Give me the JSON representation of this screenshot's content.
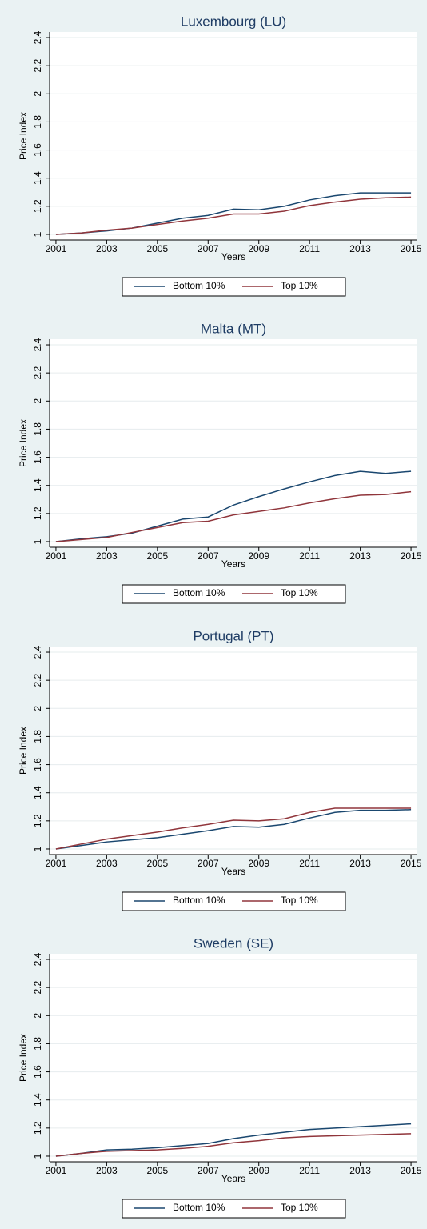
{
  "chart_data": [
    {
      "type": "line",
      "title": "Luxembourg (LU)",
      "xlabel": "Years",
      "ylabel": "Price Index",
      "grid": true,
      "x": [
        2001,
        2002,
        2003,
        2004,
        2005,
        2006,
        2007,
        2008,
        2009,
        2010,
        2011,
        2012,
        2013,
        2014,
        2015
      ],
      "series": [
        {
          "name": "Bottom 10%",
          "color": "#1a476f",
          "values": [
            1.0,
            1.01,
            1.025,
            1.045,
            1.08,
            1.115,
            1.135,
            1.18,
            1.175,
            1.2,
            1.245,
            1.275,
            1.295,
            1.295,
            1.295
          ]
        },
        {
          "name": "Top 10%",
          "color": "#90353b",
          "values": [
            1.0,
            1.01,
            1.03,
            1.045,
            1.07,
            1.095,
            1.115,
            1.145,
            1.145,
            1.165,
            1.205,
            1.23,
            1.25,
            1.26,
            1.265
          ]
        }
      ],
      "xlim": [
        2000.75,
        2015.25
      ],
      "xticks": [
        2001,
        2003,
        2005,
        2007,
        2009,
        2011,
        2013,
        2015
      ],
      "ylim": [
        0.96,
        2.44
      ],
      "yticks": [
        1,
        1.2,
        1.4,
        1.6,
        1.8,
        2,
        2.2,
        2.4
      ]
    },
    {
      "type": "line",
      "title": "Malta (MT)",
      "xlabel": "Years",
      "ylabel": "Price Index",
      "grid": true,
      "x": [
        2001,
        2002,
        2003,
        2004,
        2005,
        2006,
        2007,
        2008,
        2009,
        2010,
        2011,
        2012,
        2013,
        2014,
        2015
      ],
      "series": [
        {
          "name": "Bottom 10%",
          "color": "#1a476f",
          "values": [
            1.0,
            1.02,
            1.035,
            1.06,
            1.11,
            1.16,
            1.175,
            1.26,
            1.32,
            1.375,
            1.425,
            1.47,
            1.5,
            1.485,
            1.5
          ]
        },
        {
          "name": "Top 10%",
          "color": "#90353b",
          "values": [
            1.0,
            1.015,
            1.03,
            1.065,
            1.1,
            1.135,
            1.145,
            1.19,
            1.215,
            1.24,
            1.275,
            1.305,
            1.33,
            1.335,
            1.355
          ]
        }
      ],
      "xlim": [
        2000.75,
        2015.25
      ],
      "xticks": [
        2001,
        2003,
        2005,
        2007,
        2009,
        2011,
        2013,
        2015
      ],
      "ylim": [
        0.96,
        2.44
      ],
      "yticks": [
        1,
        1.2,
        1.4,
        1.6,
        1.8,
        2,
        2.2,
        2.4
      ]
    },
    {
      "type": "line",
      "title": "Portugal (PT)",
      "xlabel": "Years",
      "ylabel": "Price Index",
      "grid": true,
      "x": [
        2001,
        2002,
        2003,
        2004,
        2005,
        2006,
        2007,
        2008,
        2009,
        2010,
        2011,
        2012,
        2013,
        2014,
        2015
      ],
      "series": [
        {
          "name": "Bottom 10%",
          "color": "#1a476f",
          "values": [
            1.0,
            1.025,
            1.05,
            1.065,
            1.08,
            1.105,
            1.13,
            1.16,
            1.155,
            1.175,
            1.22,
            1.26,
            1.275,
            1.275,
            1.28
          ]
        },
        {
          "name": "Top 10%",
          "color": "#90353b",
          "values": [
            1.0,
            1.035,
            1.07,
            1.095,
            1.12,
            1.15,
            1.175,
            1.205,
            1.2,
            1.215,
            1.26,
            1.29,
            1.29,
            1.29,
            1.29
          ]
        }
      ],
      "xlim": [
        2000.75,
        2015.25
      ],
      "xticks": [
        2001,
        2003,
        2005,
        2007,
        2009,
        2011,
        2013,
        2015
      ],
      "ylim": [
        0.96,
        2.44
      ],
      "yticks": [
        1,
        1.2,
        1.4,
        1.6,
        1.8,
        2,
        2.2,
        2.4
      ]
    },
    {
      "type": "line",
      "title": "Sweden (SE)",
      "xlabel": "Years",
      "ylabel": "Price Index",
      "grid": true,
      "x": [
        2001,
        2002,
        2003,
        2004,
        2005,
        2006,
        2007,
        2008,
        2009,
        2010,
        2011,
        2012,
        2013,
        2014,
        2015
      ],
      "series": [
        {
          "name": "Bottom 10%",
          "color": "#1a476f",
          "values": [
            1.0,
            1.02,
            1.045,
            1.05,
            1.06,
            1.075,
            1.09,
            1.125,
            1.15,
            1.17,
            1.19,
            1.2,
            1.21,
            1.22,
            1.23
          ]
        },
        {
          "name": "Top 10%",
          "color": "#90353b",
          "values": [
            1.0,
            1.02,
            1.035,
            1.04,
            1.045,
            1.055,
            1.07,
            1.095,
            1.11,
            1.13,
            1.14,
            1.145,
            1.15,
            1.155,
            1.16
          ]
        }
      ],
      "xlim": [
        2000.75,
        2015.25
      ],
      "xticks": [
        2001,
        2003,
        2005,
        2007,
        2009,
        2011,
        2013,
        2015
      ],
      "ylim": [
        0.96,
        2.44
      ],
      "yticks": [
        1,
        1.2,
        1.4,
        1.6,
        1.8,
        2,
        2.2,
        2.4
      ]
    }
  ]
}
